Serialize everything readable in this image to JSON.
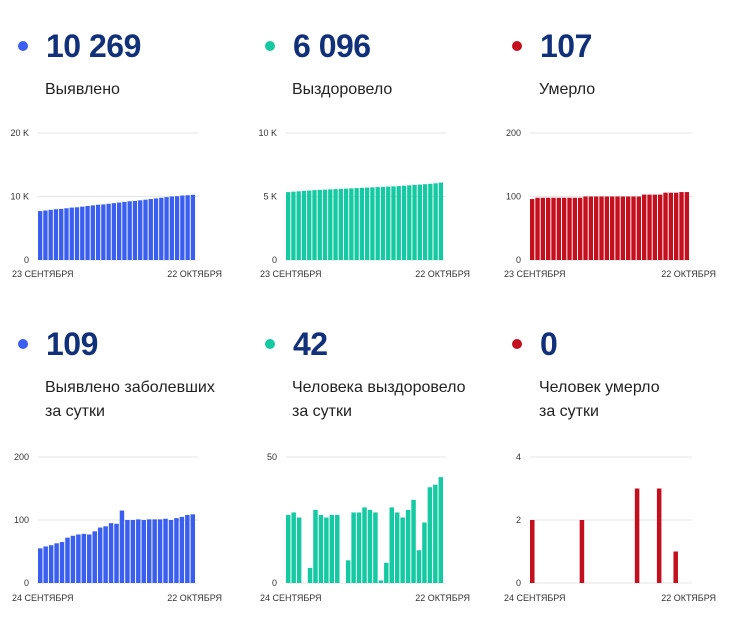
{
  "colors": {
    "blue": "#3a5ef0",
    "green": "#15c9a2",
    "red": "#c4101e"
  },
  "panels": [
    {
      "id": "detected",
      "value": "10 269",
      "label_lines": [
        "Выявлено"
      ],
      "color": "blue"
    },
    {
      "id": "recovered",
      "value": "6 096",
      "label_lines": [
        "Выздоровело"
      ],
      "color": "green"
    },
    {
      "id": "died",
      "value": "107",
      "label_lines": [
        "Умерло"
      ],
      "color": "red"
    },
    {
      "id": "daily-detected",
      "value": "109",
      "label_lines": [
        "Выявлено заболевших",
        "за сутки"
      ],
      "color": "blue"
    },
    {
      "id": "daily-recovered",
      "value": "42",
      "label_lines": [
        "Человека выздоровело",
        "за сутки"
      ],
      "color": "green"
    },
    {
      "id": "daily-died",
      "value": "0",
      "label_lines": [
        "Человек умерло",
        "за сутки"
      ],
      "color": "red"
    }
  ],
  "chart_data": [
    {
      "type": "bar",
      "name": "detected",
      "color": "blue",
      "ylim": [
        0,
        20000
      ],
      "ticks": [
        0,
        10000,
        20000
      ],
      "tick_labels": [
        "0",
        "10 K",
        "20 K"
      ],
      "x_start": "23 СЕНТЯБРЯ",
      "x_end": "22 ОКТЯБРЯ",
      "values": [
        7700,
        7800,
        7900,
        8000,
        8050,
        8150,
        8250,
        8300,
        8400,
        8500,
        8600,
        8700,
        8750,
        8850,
        8950,
        9050,
        9150,
        9250,
        9300,
        9400,
        9500,
        9600,
        9700,
        9800,
        9900,
        10000,
        10050,
        10150,
        10200,
        10269
      ]
    },
    {
      "type": "bar",
      "name": "recovered",
      "color": "green",
      "ylim": [
        0,
        10000
      ],
      "ticks": [
        0,
        5000,
        10000
      ],
      "tick_labels": [
        "0",
        "5 K",
        "10 K"
      ],
      "x_start": "23 СЕНТЯБРЯ",
      "x_end": "22 ОКТЯБРЯ",
      "values": [
        5350,
        5380,
        5410,
        5440,
        5470,
        5500,
        5520,
        5540,
        5560,
        5580,
        5600,
        5620,
        5640,
        5660,
        5680,
        5700,
        5720,
        5740,
        5760,
        5780,
        5800,
        5820,
        5850,
        5880,
        5910,
        5940,
        5970,
        6000,
        6040,
        6096
      ]
    },
    {
      "type": "bar",
      "name": "died",
      "color": "red",
      "ylim": [
        0,
        200
      ],
      "ticks": [
        0,
        100,
        200
      ],
      "tick_labels": [
        "0",
        "100",
        "200"
      ],
      "x_start": "23 СЕНТЯБРЯ",
      "x_end": "22 ОКТЯБРЯ",
      "values": [
        96,
        98,
        98,
        98,
        98,
        98,
        98,
        98,
        98,
        98,
        100,
        100,
        100,
        100,
        100,
        100,
        100,
        100,
        100,
        100,
        100,
        103,
        103,
        103,
        103,
        106,
        106,
        106,
        107,
        107
      ]
    },
    {
      "type": "bar",
      "name": "daily-detected",
      "color": "blue",
      "ylim": [
        0,
        200
      ],
      "ticks": [
        0,
        100,
        200
      ],
      "tick_labels": [
        "0",
        "100",
        "200"
      ],
      "x_start": "24 СЕНТЯБРЯ",
      "x_end": "22 ОКТЯБРЯ",
      "values": [
        55,
        58,
        60,
        63,
        65,
        72,
        75,
        77,
        78,
        77,
        82,
        88,
        90,
        95,
        94,
        115,
        100,
        100,
        101,
        100,
        101,
        101,
        101,
        102,
        100,
        103,
        105,
        108,
        109
      ]
    },
    {
      "type": "bar",
      "name": "daily-recovered",
      "color": "green",
      "ylim": [
        0,
        50
      ],
      "ticks": [
        0,
        50
      ],
      "tick_labels": [
        "0",
        "50"
      ],
      "x_start": "24 СЕНТЯБРЯ",
      "x_end": "22 ОКТЯБРЯ",
      "values": [
        27,
        28,
        26,
        0,
        6,
        29,
        27,
        26,
        27,
        27,
        0,
        9,
        28,
        28,
        30,
        29,
        28,
        1,
        8,
        30,
        28,
        26,
        29,
        33,
        13,
        24,
        38,
        39,
        42
      ]
    },
    {
      "type": "bar",
      "name": "daily-died",
      "color": "red",
      "ylim": [
        0,
        4
      ],
      "ticks": [
        0,
        2,
        4
      ],
      "tick_labels": [
        "0",
        "2",
        "4"
      ],
      "x_start": "24 СЕНТЯБРЯ",
      "x_end": "22 ОКТЯБРЯ",
      "values": [
        2,
        0,
        0,
        0,
        0,
        0,
        0,
        0,
        0,
        2,
        0,
        0,
        0,
        0,
        0,
        0,
        0,
        0,
        0,
        3,
        0,
        0,
        0,
        3,
        0,
        0,
        1,
        0,
        0
      ]
    }
  ]
}
